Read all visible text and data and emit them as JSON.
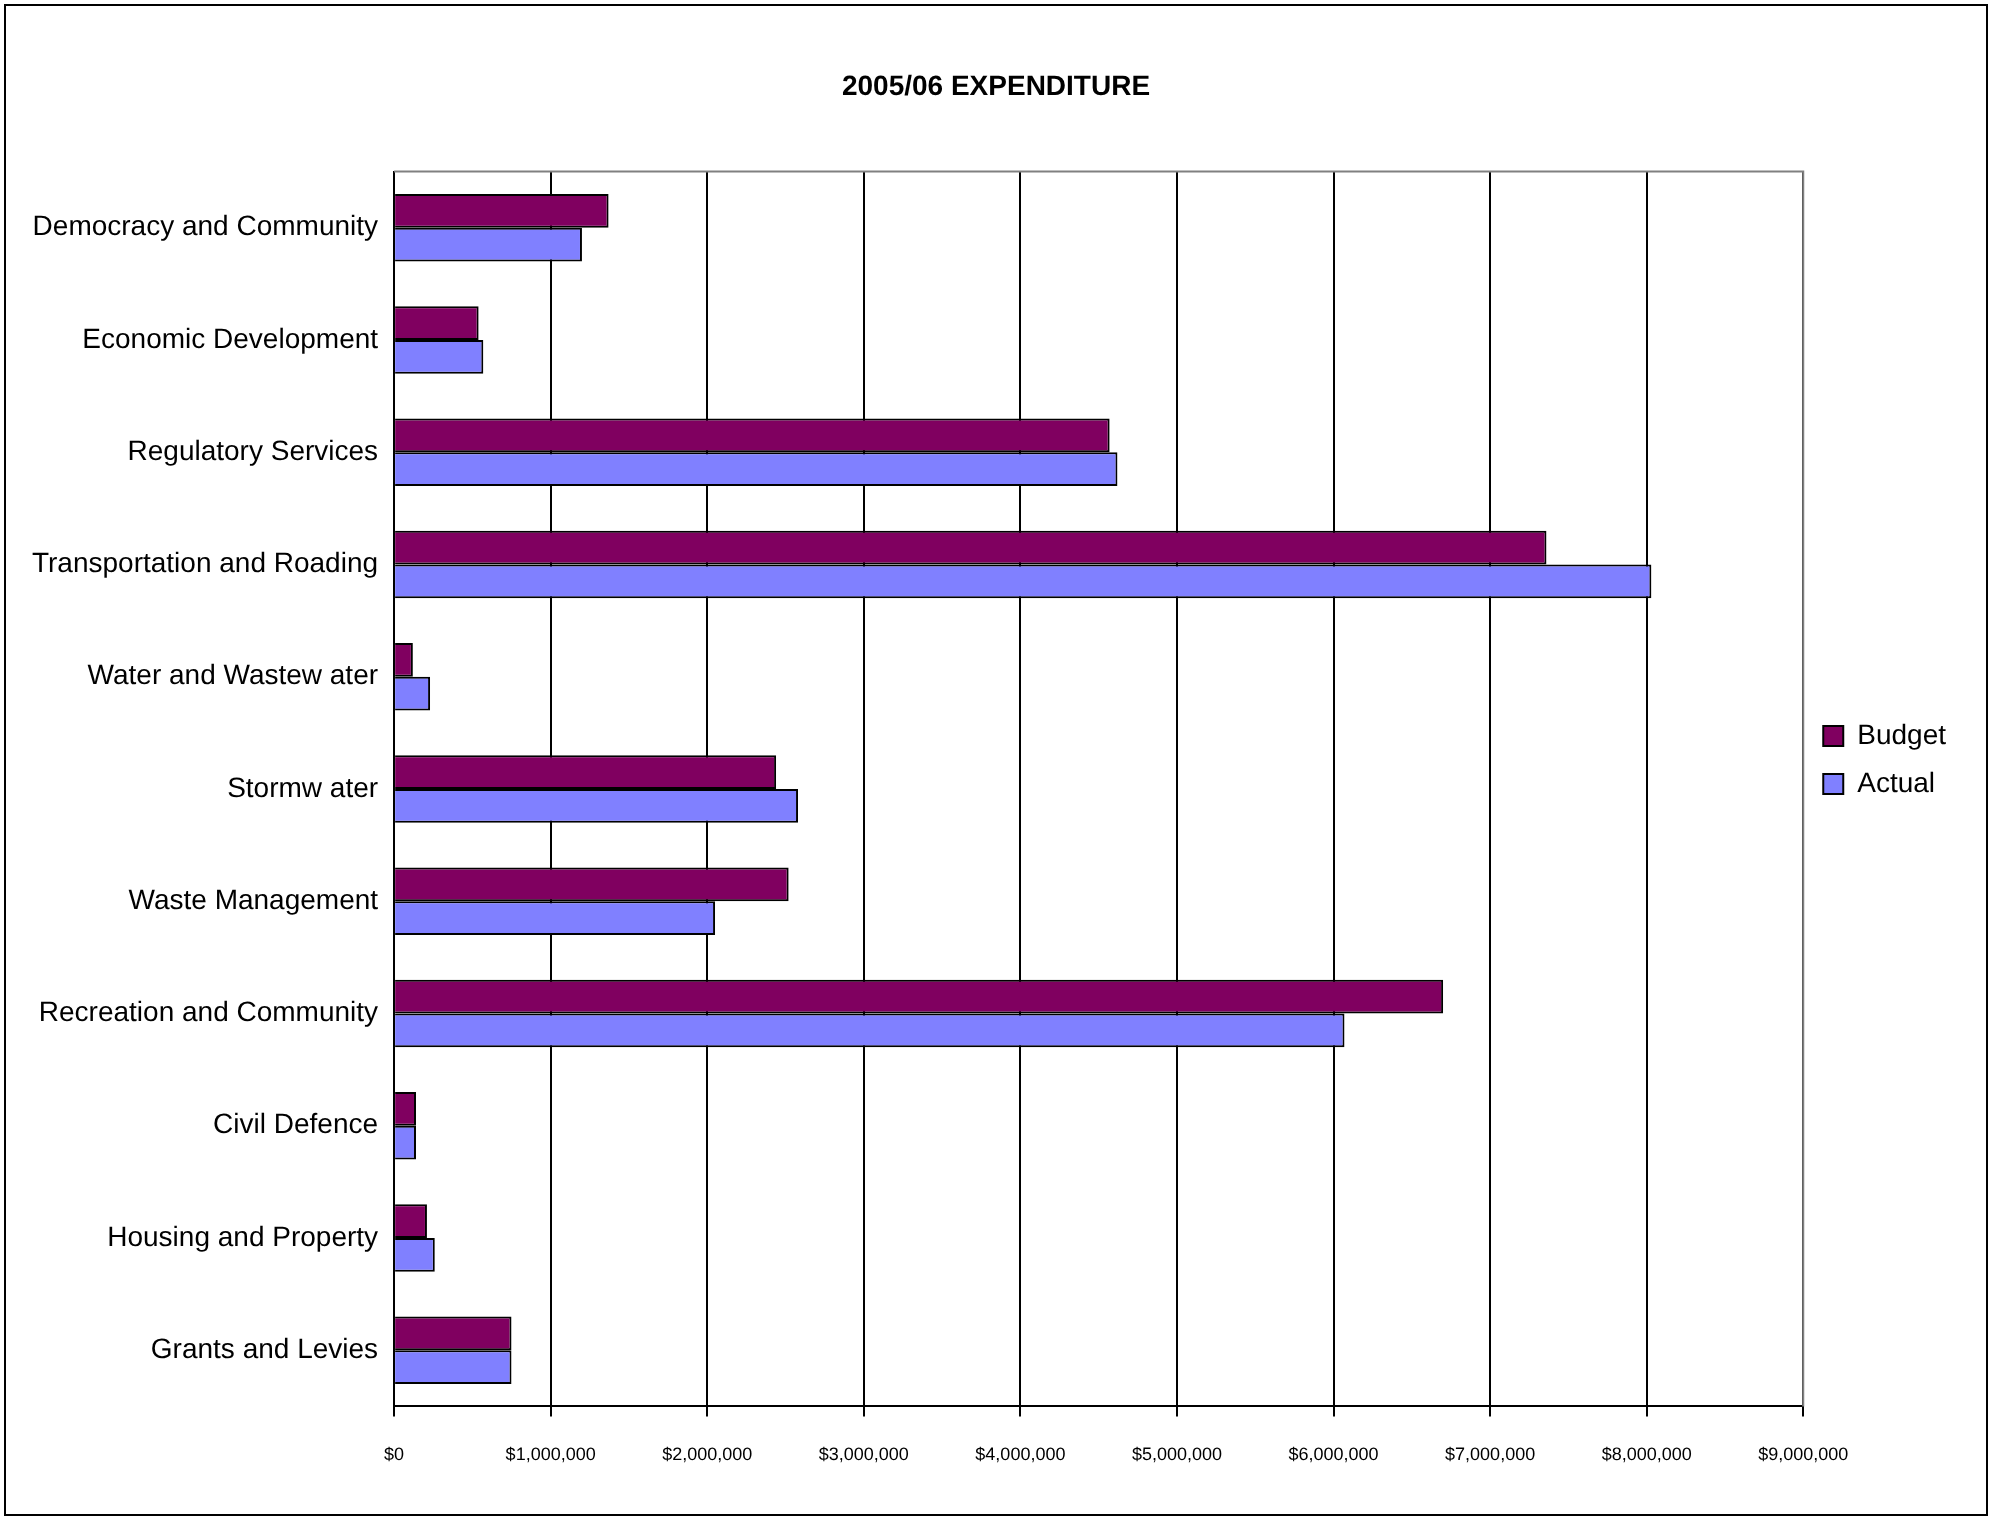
{
  "chart_data": {
    "type": "bar",
    "orientation": "horizontal",
    "title": "2005/06 EXPENDITURE",
    "categories": [
      "Democracy and Community",
      "Economic Development",
      "Regulatory Services",
      "Transportation and Roading",
      "Water and Wastew ater",
      "Stormw ater",
      "Waste Management",
      "Recreation and Community",
      "Civil Defence",
      "Housing and Property",
      "Grants and Levies"
    ],
    "series": [
      {
        "name": "Budget",
        "color": "#800060",
        "values": [
          1370000,
          540000,
          4570000,
          7360000,
          120000,
          2440000,
          2520000,
          6700000,
          140000,
          210000,
          750000
        ]
      },
      {
        "name": "Actual",
        "color": "#8080ff",
        "values": [
          1200000,
          570000,
          4620000,
          8030000,
          230000,
          2580000,
          2050000,
          6070000,
          140000,
          260000,
          750000
        ]
      }
    ],
    "xlim": [
      0,
      9000000
    ],
    "xticks": [
      {
        "value": 0,
        "label": "$0"
      },
      {
        "value": 1000000,
        "label": "$1,000,000"
      },
      {
        "value": 2000000,
        "label": "$2,000,000"
      },
      {
        "value": 3000000,
        "label": "$3,000,000"
      },
      {
        "value": 4000000,
        "label": "$4,000,000"
      },
      {
        "value": 5000000,
        "label": "$5,000,000"
      },
      {
        "value": 6000000,
        "label": "$6,000,000"
      },
      {
        "value": 7000000,
        "label": "$7,000,000"
      },
      {
        "value": 8000000,
        "label": "$8,000,000"
      },
      {
        "value": 9000000,
        "label": "$9,000,000"
      }
    ],
    "grid": "x",
    "legend": "right"
  }
}
